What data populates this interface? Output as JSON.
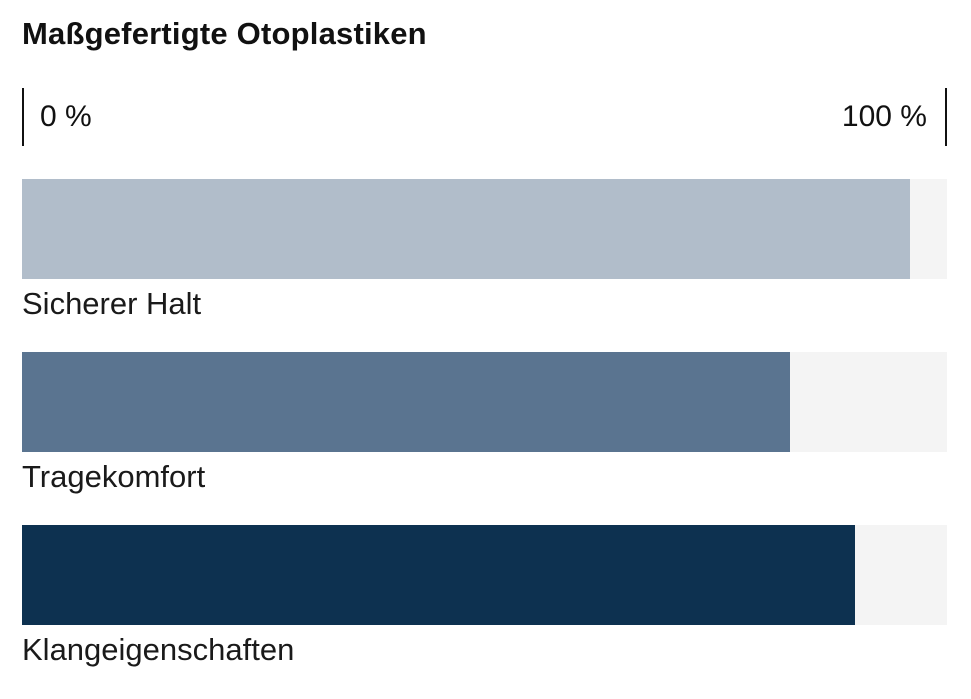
{
  "chart_data": {
    "type": "bar",
    "orientation": "horizontal",
    "title": "Maßgefertigte Otoplastiken",
    "categories": [
      "Sicherer Halt",
      "Tragekomfort",
      "Klangeigenschaften"
    ],
    "values": [
      96,
      83,
      90
    ],
    "unit": "%",
    "xlim": [
      0,
      100
    ],
    "axis_tick_labels": {
      "min": "0 %",
      "max": "100 %"
    },
    "bar_colors": [
      "#b1bdca",
      "#5a7490",
      "#0d3150"
    ],
    "track_color": "#f4f4f4",
    "text_color": "#111111",
    "grid": false,
    "legend": "none"
  }
}
